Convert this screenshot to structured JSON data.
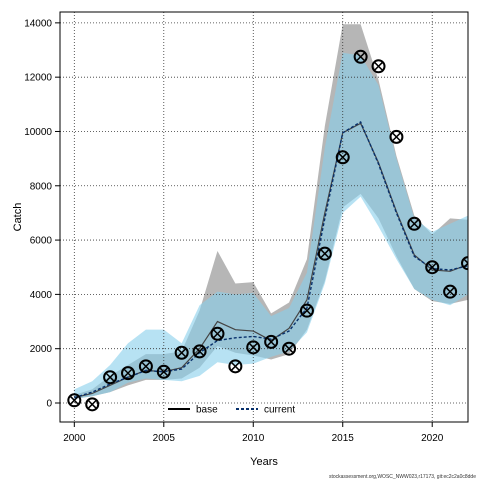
{
  "chart_data": {
    "type": "line",
    "xlabel": "Years",
    "ylabel": "Catch",
    "xlim": [
      1999.2,
      2022
    ],
    "ylim": [
      -700,
      14400
    ],
    "xticks": [
      2000,
      2005,
      2010,
      2015,
      2020
    ],
    "yticks": [
      0,
      2000,
      4000,
      6000,
      8000,
      10000,
      12000,
      14000
    ],
    "grid": true,
    "legend_position": "bottom-center",
    "colors": {
      "base": "#000000",
      "current": "#1f77b4",
      "base_band": "#a9a9a9",
      "current_band": "#87ceeb",
      "observed": "#000000"
    },
    "years": [
      2000,
      2001,
      2002,
      2003,
      2004,
      2005,
      2006,
      2007,
      2008,
      2009,
      2010,
      2011,
      2012,
      2013,
      2014,
      2015,
      2016,
      2017,
      2018,
      2019,
      2020,
      2021,
      2022
    ],
    "series": [
      {
        "name": "base",
        "line_style": "solid",
        "median": [
          200,
          350,
          650,
          950,
          1200,
          1150,
          1300,
          2000,
          3000,
          2700,
          2650,
          2300,
          2750,
          3800,
          7000,
          9950,
          10300,
          8850,
          7050,
          5450,
          4900,
          4850,
          5100
        ],
        "lower": [
          150,
          250,
          400,
          650,
          850,
          850,
          900,
          1300,
          2100,
          1850,
          1750,
          1600,
          1800,
          2700,
          4500,
          7200,
          7700,
          6800,
          5400,
          4200,
          3750,
          3650,
          3800
        ],
        "upper": [
          300,
          500,
          1000,
          1400,
          1800,
          1800,
          1900,
          3400,
          5600,
          4400,
          4450,
          3300,
          3700,
          5300,
          10200,
          13950,
          13950,
          11900,
          9100,
          6900,
          6200,
          6800,
          6750
        ]
      },
      {
        "name": "current",
        "line_style": "dashed",
        "median": [
          200,
          400,
          700,
          950,
          1200,
          1150,
          1250,
          1850,
          2300,
          2400,
          2450,
          2350,
          2650,
          3500,
          6800,
          9950,
          10350,
          8800,
          7000,
          5400,
          4950,
          4900,
          5050
        ],
        "lower": [
          150,
          250,
          400,
          750,
          900,
          850,
          800,
          1000,
          1500,
          1400,
          1450,
          1700,
          1900,
          2600,
          4400,
          7000,
          7600,
          6500,
          5300,
          4200,
          3800,
          3600,
          4000
        ],
        "upper": [
          500,
          800,
          1400,
          2200,
          2700,
          2700,
          2200,
          3600,
          4100,
          4000,
          4050,
          3200,
          3500,
          4800,
          9400,
          12900,
          12800,
          11700,
          9000,
          6800,
          6300,
          6600,
          6900
        ]
      },
      {
        "name": "observed",
        "marker": "circle-x",
        "values": [
          100,
          -50,
          950,
          1100,
          1350,
          1150,
          1850,
          1900,
          2550,
          1350,
          2050,
          2250,
          2000,
          3400,
          5500,
          9050,
          12750,
          12400,
          9800,
          6600,
          5000,
          4100,
          5150
        ]
      }
    ]
  },
  "legend": {
    "items": [
      "base",
      "current"
    ]
  },
  "footnote": "stockassessment.org,WOSC_NWW023,r17173, git:ec2c2a0c8dde"
}
